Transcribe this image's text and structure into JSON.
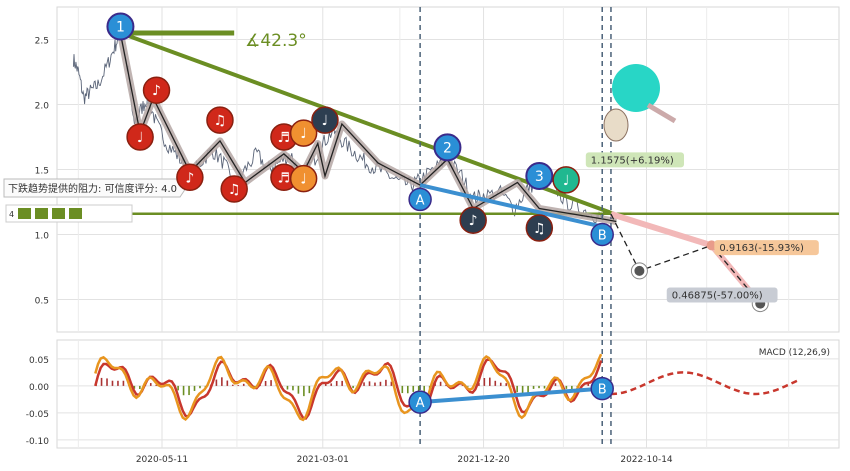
{
  "chart_data": [
    {
      "type": "line",
      "name": "price-panel",
      "x_ticks": [
        "2020-05-11",
        "2021-03-01",
        "2021-12-20",
        "2022-10-14"
      ],
      "y_ticks": [
        0.5,
        1.0,
        1.5,
        2.0,
        2.5
      ],
      "ylim": [
        0.25,
        2.75
      ],
      "grid": true,
      "price_series": [
        [
          "2019-12-01",
          2.35
        ],
        [
          "2019-12-10",
          2.25
        ],
        [
          "2019-12-20",
          2.05
        ],
        [
          "2020-01-01",
          2.1
        ],
        [
          "2020-01-15",
          2.15
        ],
        [
          "2020-02-01",
          2.3
        ],
        [
          "2020-02-15",
          2.45
        ],
        [
          "2020-02-25",
          2.55
        ],
        [
          "2020-03-10",
          2.25
        ],
        [
          "2020-03-20",
          1.85
        ],
        [
          "2020-04-01",
          1.95
        ],
        [
          "2020-04-15",
          2.05
        ],
        [
          "2020-05-01",
          1.85
        ],
        [
          "2020-05-20",
          1.7
        ],
        [
          "2020-06-10",
          1.6
        ],
        [
          "2020-07-01",
          1.45
        ],
        [
          "2020-07-20",
          1.55
        ],
        [
          "2020-08-10",
          1.65
        ],
        [
          "2020-09-01",
          1.55
        ],
        [
          "2020-09-20",
          1.4
        ],
        [
          "2020-10-10",
          1.5
        ],
        [
          "2020-11-01",
          1.62
        ],
        [
          "2020-11-20",
          1.5
        ],
        [
          "2020-12-10",
          1.55
        ],
        [
          "2021-01-01",
          1.62
        ],
        [
          "2021-01-20",
          1.45
        ],
        [
          "2021-02-10",
          1.55
        ],
        [
          "2021-03-01",
          1.7
        ],
        [
          "2021-03-20",
          1.8
        ],
        [
          "2021-04-10",
          1.7
        ],
        [
          "2021-05-01",
          1.62
        ],
        [
          "2021-05-20",
          1.55
        ],
        [
          "2021-06-10",
          1.5
        ],
        [
          "2021-07-01",
          1.45
        ],
        [
          "2021-07-20",
          1.4
        ],
        [
          "2021-08-10",
          1.38
        ],
        [
          "2021-08-26",
          1.42
        ],
        [
          "2021-09-20",
          1.5
        ],
        [
          "2021-10-15",
          1.58
        ],
        [
          "2021-11-10",
          1.45
        ],
        [
          "2021-12-01",
          1.28
        ],
        [
          "2021-12-20",
          1.3
        ],
        [
          "2022-01-20",
          1.32
        ],
        [
          "2022-02-15",
          1.2
        ],
        [
          "2022-03-10",
          1.35
        ],
        [
          "2022-04-01",
          1.42
        ],
        [
          "2022-04-25",
          1.38
        ],
        [
          "2022-05-20",
          1.25
        ],
        [
          "2022-06-15",
          1.2
        ],
        [
          "2022-07-10",
          1.15
        ],
        [
          "2022-07-25",
          1.12
        ],
        [
          "2022-08-01",
          1.15
        ]
      ],
      "resistance_note": "下跌趋势提供的阻力: 可信度评分: 4.0",
      "angle_label": "∡42.3°",
      "wave_labels": [
        "1",
        "2",
        "3",
        "A",
        "B"
      ],
      "targets": [
        {
          "label": "1.1575(+6.19%)",
          "value": 1.1575
        },
        {
          "label": "0.9163(-15.93%)",
          "value": 0.9163
        },
        {
          "label": "0.46875(-57.00%)",
          "value": 0.46875
        }
      ],
      "left_badge": "4"
    },
    {
      "type": "line",
      "name": "macd-panel",
      "title": "MACD (12,26,9)",
      "y_ticks": [
        0.05,
        0.0,
        -0.05,
        -0.1
      ],
      "ylim": [
        -0.115,
        0.085
      ],
      "grid": true,
      "wave_labels": [
        "A",
        "B"
      ]
    }
  ],
  "colors": {
    "price_line": "#5a6478",
    "trend_line": "#6b8e23",
    "wave_line": "#3b8fd0",
    "zigzag_outline": "#e89b8a",
    "macd_line": "#e8951f",
    "signal_line": "#c8372d",
    "target_green": "#cfe6b8",
    "target_orange": "#f6c79a",
    "target_grey": "#c8ccd4"
  }
}
